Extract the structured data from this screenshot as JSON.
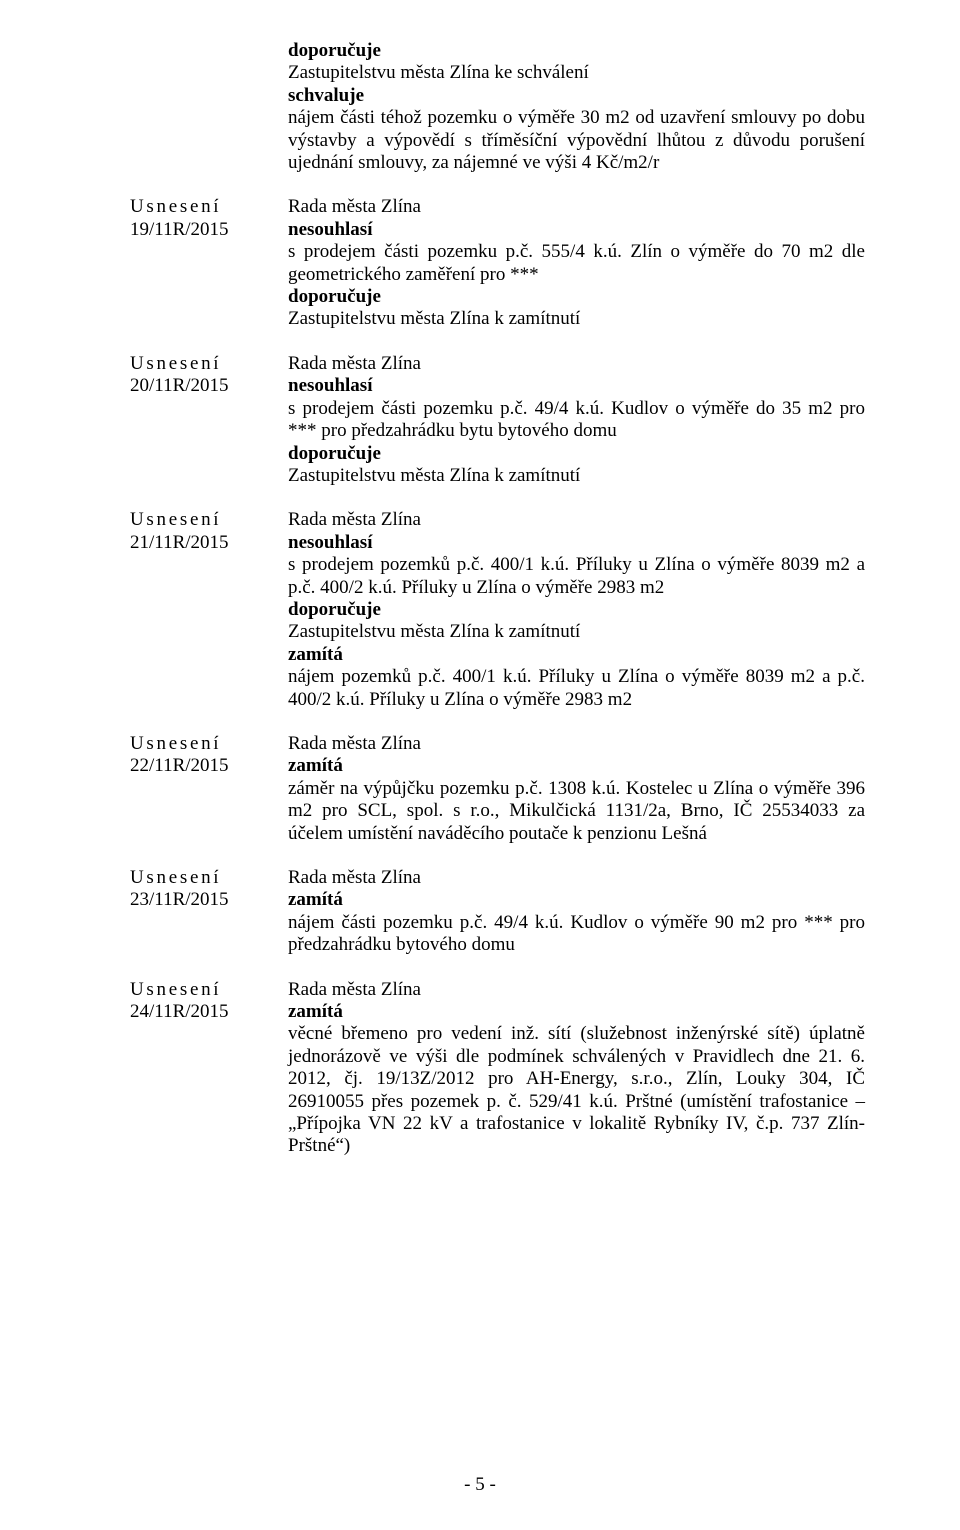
{
  "intro": {
    "line1": "doporučuje",
    "line2": "Zastupitelstvu města Zlína ke schválení",
    "line3": "schvaluje",
    "body": "nájem části téhož pozemku o výměře 30 m2 od uzavření smlouvy po dobu výstavby a výpovědí s tříměsíční výpovědní lhůtou z důvodu porušení ujednání smlouvy, za nájemné ve výši 4 Kč/m2/r"
  },
  "labels": {
    "usneseni": "Usnesení",
    "rada": "Rada města Zlína",
    "nesouhlasi": "nesouhlasí",
    "doporucuje": "doporučuje",
    "zamita": "zamítá",
    "zast_zamit": "Zastupitelstvu města Zlína k zamítnutí"
  },
  "res": [
    {
      "num": "19/11R/2015",
      "head": "nesouhlasí",
      "body1": "s prodejem části pozemku p.č. 555/4 k.ú. Zlín o výměře do 70 m2 dle geometrického zaměření pro ***",
      "dopor": true
    },
    {
      "num": "20/11R/2015",
      "head": "nesouhlasí",
      "body1": "s prodejem části pozemku p.č. 49/4 k.ú. Kudlov o výměře do 35 m2 pro *** pro předzahrádku bytu bytového domu",
      "dopor": true
    },
    {
      "num": "21/11R/2015",
      "head": "nesouhlasí",
      "body1": "s prodejem pozemků p.č. 400/1 k.ú. Příluky u Zlína o výměře 8039 m2 a p.č. 400/2 k.ú. Příluky u Zlína o výměře 2983 m2",
      "dopor": true,
      "zamita": true,
      "body2": "nájem pozemků p.č. 400/1 k.ú. Příluky u Zlína o výměře 8039 m2 a p.č. 400/2 k.ú. Příluky u Zlína o výměře 2983 m2"
    },
    {
      "num": "22/11R/2015",
      "head": "zamítá",
      "body1": "záměr na výpůjčku pozemku p.č. 1308 k.ú. Kostelec u Zlína o výměře 396 m2 pro SCL, spol. s r.o., Mikulčická 1131/2a, Brno, IČ 25534033 za účelem umístění naváděcího poutače k penzionu Lešná"
    },
    {
      "num": "23/11R/2015",
      "head": "zamítá",
      "body1": "nájem části pozemku p.č. 49/4 k.ú. Kudlov o výměře 90 m2 pro *** pro předzahrádku bytového domu"
    },
    {
      "num": "24/11R/2015",
      "head": "zamítá",
      "body1": "věcné břemeno pro vedení inž. sítí (služebnost inženýrské sítě) úplatně jednorázově ve výši dle podmínek schválených v Pravidlech dne 21. 6. 2012, čj. 19/13Z/2012 pro AH-Energy, s.r.o., Zlín, Louky 304, IČ 26910055 přes pozemek p. č. 529/41 k.ú. Prštné (umístění trafostanice – „Přípojka VN 22 kV a trafostanice v lokalitě Rybníky IV, č.p. 737 Zlín-Prštné“)"
    }
  ],
  "footer": "- 5 -"
}
